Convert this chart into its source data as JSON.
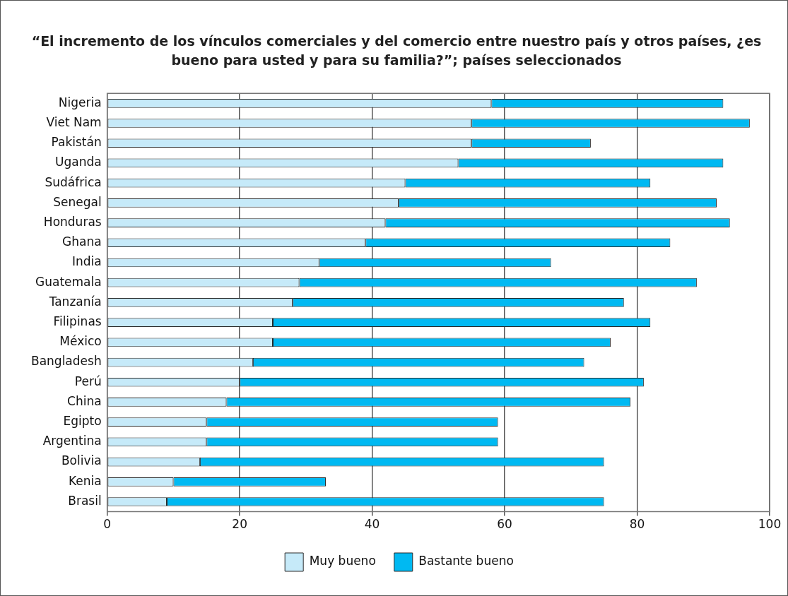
{
  "chart_data": {
    "type": "bar",
    "orientation": "horizontal",
    "stacked": true,
    "title": "“El incremento de los vínculos comerciales y del comercio entre nuestro país y otros países, ¿es bueno para usted y para su familia?”; países seleccionados",
    "categories": [
      "Nigeria",
      "Viet Nam",
      "Pakistán",
      "Uganda",
      "Sudáfrica",
      "Senegal",
      "Honduras",
      "Ghana",
      "India",
      "Guatemala",
      "Tanzanía",
      "Filipinas",
      "México",
      "Bangladesh",
      "Perú",
      "China",
      "Egipto",
      "Argentina",
      "Bolivia",
      "Kenia",
      "Brasil"
    ],
    "series": [
      {
        "name": "Muy bueno",
        "color": "#c6eaf9",
        "values": [
          58,
          55,
          55,
          53,
          45,
          44,
          42,
          39,
          32,
          29,
          28,
          25,
          25,
          22,
          20,
          18,
          15,
          15,
          14,
          10,
          9
        ]
      },
      {
        "name": "Bastante bueno",
        "color": "#00b9f2",
        "values": [
          35,
          42,
          18,
          40,
          37,
          48,
          52,
          46,
          35,
          60,
          50,
          57,
          51,
          50,
          61,
          61,
          44,
          44,
          61,
          23,
          66
        ]
      }
    ],
    "xlim": [
      0,
      100
    ],
    "xticks": [
      0,
      20,
      40,
      60,
      80,
      100
    ],
    "grid": "x",
    "legend": "bottom"
  }
}
